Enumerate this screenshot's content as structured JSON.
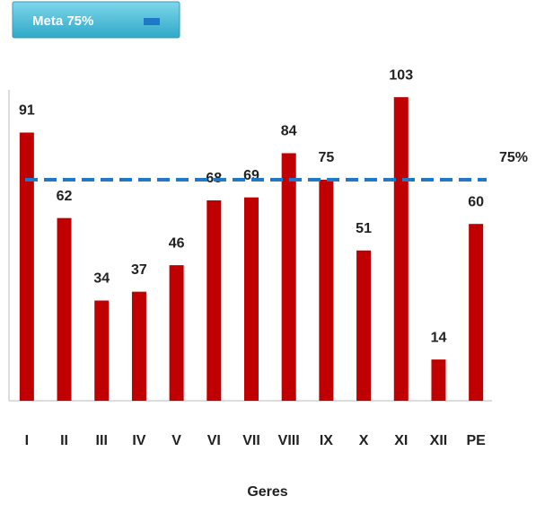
{
  "chart_data": {
    "type": "bar",
    "categories": [
      "I",
      "II",
      "III",
      "IV",
      "V",
      "VI",
      "VII",
      "VIII",
      "IX",
      "X",
      "XI",
      "XII",
      "PE"
    ],
    "values": [
      91,
      62,
      34,
      37,
      46,
      68,
      69,
      84,
      75,
      51,
      103,
      14,
      60
    ],
    "color": "#c00000",
    "ylim": [
      0,
      100
    ],
    "xlabel": "Geres",
    "reference_line": {
      "value": 75,
      "label": "75%",
      "color": "#1f78c8",
      "legend": "Meta 75%"
    }
  }
}
